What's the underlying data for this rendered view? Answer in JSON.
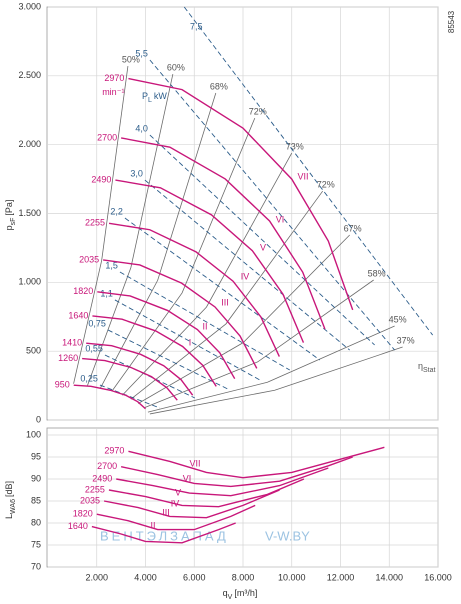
{
  "figure_id": "85543",
  "watermark": {
    "brand": "ВЕНТЭЛЗАПАД",
    "site": "V-W.BY"
  },
  "chart_data": [
    {
      "type": "line",
      "ylabel": {
        "symbol": "p",
        "sub": "sF",
        "unit": "[Pa]"
      },
      "xlim": [
        0,
        16000
      ],
      "ylim": [
        0,
        3000
      ],
      "yticks": [
        0,
        500,
        {
          "value": 1000,
          "label": "1.000"
        },
        {
          "value": 1500,
          "label": "1.500"
        },
        {
          "value": 2000,
          "label": "2.000"
        },
        {
          "value": 2500,
          "label": "2.500"
        },
        {
          "value": 3000,
          "label": "3.000"
        }
      ],
      "grid": true,
      "speed_unit": "min⁻¹",
      "series": [
        {
          "name": "2970",
          "color": "#c8177a",
          "x": [
            3300,
            5500,
            8000,
            10000,
            11500,
            12500
          ],
          "values": [
            2480,
            2400,
            2120,
            1750,
            1300,
            800
          ]
        },
        {
          "name": "2700",
          "color": "#c8177a",
          "x": [
            3000,
            5000,
            7270,
            9090,
            10450,
            11360
          ],
          "values": [
            2049,
            1982,
            1751,
            1446,
            1074,
            661
          ]
        },
        {
          "name": "2490",
          "color": "#c8177a",
          "x": [
            2766,
            4611,
            6707,
            8384,
            9641,
            10480
          ],
          "values": [
            1743,
            1687,
            1490,
            1230,
            914,
            562
          ]
        },
        {
          "name": "2255",
          "color": "#c8177a",
          "x": [
            2505,
            4176,
            6074,
            7593,
            8732,
            9491
          ],
          "values": [
            1429,
            1382,
            1221,
            1008,
            749,
            461
          ]
        },
        {
          "name": "2035",
          "color": "#c8177a",
          "x": [
            2261,
            3768,
            5481,
            6852,
            7880,
            8565
          ],
          "values": [
            1163,
            1126,
            994,
            821,
            610,
            375
          ]
        },
        {
          "name": "1820",
          "color": "#c8177a",
          "x": [
            2022,
            3370,
            4902,
            6128,
            7047,
            7660
          ],
          "values": [
            931,
            901,
            796,
            657,
            488,
            300
          ]
        },
        {
          "name": "1640",
          "color": "#c8177a",
          "x": [
            1822,
            3037,
            4418,
            5522,
            6350,
            6902
          ],
          "values": [
            756,
            732,
            647,
            534,
            397,
            244
          ]
        },
        {
          "name": "1410",
          "color": "#c8177a",
          "x": [
            1567,
            2611,
            3798,
            4747,
            5459,
            5934
          ],
          "values": [
            558,
            540,
            477,
            394,
            293,
            180
          ]
        },
        {
          "name": "1260",
          "color": "#c8177a",
          "x": [
            1400,
            2333,
            3394,
            4242,
            4879,
            5303
          ],
          "values": [
            446,
            432,
            382,
            315,
            234,
            144
          ]
        },
        {
          "name": "950",
          "color": "#c8177a",
          "x": [
            1056,
            1759,
            2559,
            3199,
            3679,
            3999
          ],
          "values": [
            253,
            245,
            216,
            179,
            133,
            82
          ]
        }
      ],
      "curve_labels": [
        "I",
        "II",
        "III",
        "IV",
        "V",
        "VI",
        "VII"
      ],
      "efficiency_label": {
        "symbol": "η",
        "sub": "Stat"
      },
      "efficiency_lines": [
        {
          "name": "50%",
          "color": "#6b6b6b",
          "x": [
            1050,
            2200,
            3279
          ],
          "values": [
            264,
            1157,
            2571
          ]
        },
        {
          "name": "60%",
          "color": "#6b6b6b",
          "x": [
            1620,
            3400,
            5123
          ],
          "values": [
            251,
            1107,
            2513
          ]
        },
        {
          "name": "68%",
          "color": "#6b6b6b",
          "x": [
            2150,
            4500,
            6885
          ],
          "values": [
            232,
            1015,
            2375
          ]
        },
        {
          "name": "72%",
          "color": "#6b6b6b",
          "x": [
            2620,
            5500,
            8484
          ],
          "values": [
            209,
            923,
            2193
          ]
        },
        {
          "name": "73%",
          "color": "#6b6b6b",
          "x": [
            3050,
            6500,
            10000
          ],
          "values": [
            180,
            820,
            1939
          ]
        },
        {
          "name": "72%",
          "color": "#6b6b6b",
          "x": [
            3400,
            7300,
            11270
          ],
          "values": [
            151,
            698,
            1663
          ]
        },
        {
          "name": "67%",
          "color": "#6b6b6b",
          "x": [
            3700,
            8000,
            12377
          ],
          "values": [
            120,
            561,
            1344
          ]
        },
        {
          "name": "58%",
          "color": "#6b6b6b",
          "x": [
            3950,
            8600,
            13361
          ],
          "values": [
            89,
            422,
            1017
          ]
        },
        {
          "name": "45%",
          "color": "#6b6b6b",
          "x": [
            4100,
            9000,
            14221
          ],
          "values": [
            57,
            274,
            683
          ]
        },
        {
          "name": "37%",
          "color": "#6b6b6b",
          "x": [
            4180,
            9300,
            14549
          ],
          "values": [
            44,
            216,
            530
          ]
        }
      ],
      "power_label": {
        "symbol": "P",
        "sub": "L",
        "unit": "kW"
      },
      "power_lines": [
        {
          "name": "0,25",
          "color": "#2b5c8a",
          "x": [
            2131,
            4590
          ],
          "values": [
            254,
            87
          ]
        },
        {
          "name": "0,55",
          "color": "#2b5c8a",
          "x": [
            2336,
            6025
          ],
          "values": [
            472,
            160
          ]
        },
        {
          "name": "0,75",
          "color": "#2b5c8a",
          "x": [
            2459,
            7459
          ],
          "values": [
            654,
            218
          ]
        },
        {
          "name": "1,1",
          "color": "#2b5c8a",
          "x": [
            2746,
            8689
          ],
          "values": [
            872,
            291
          ]
        },
        {
          "name": "1,5",
          "color": "#2b5c8a",
          "x": [
            2951,
            9918
          ],
          "values": [
            1075,
            363
          ]
        },
        {
          "name": "2,2",
          "color": "#2b5c8a",
          "x": [
            3156,
            11148
          ],
          "values": [
            1467,
            436
          ]
        },
        {
          "name": "3,0",
          "color": "#2b5c8a",
          "x": [
            3975,
            12377
          ],
          "values": [
            1743,
            508
          ]
        },
        {
          "name": "4,0",
          "color": "#2b5c8a",
          "x": [
            4180,
            13400
          ],
          "values": [
            2070,
            545
          ]
        },
        {
          "name": "5,5",
          "color": "#2b5c8a",
          "x": [
            4180,
            14221
          ],
          "values": [
            2615,
            508
          ]
        },
        {
          "name": "7,5",
          "color": "#2b5c8a",
          "x": [
            5590,
            15780
          ],
          "values": [
            3000,
            617
          ]
        }
      ]
    },
    {
      "type": "line",
      "ylabel": {
        "symbol": "L",
        "sub": "WA6",
        "unit": "[dB]"
      },
      "xlabel": {
        "symbol": "q",
        "sub": "V",
        "unit": "[m³/h]"
      },
      "xlim": [
        0,
        16000
      ],
      "ylim": [
        70,
        100
      ],
      "xticks": [
        {
          "value": 2000,
          "label": "2.000"
        },
        {
          "value": 4000,
          "label": "4.000"
        },
        {
          "value": 6000,
          "label": "6.000"
        },
        {
          "value": 8000,
          "label": "8.000"
        },
        {
          "value": 10000,
          "label": "10.000"
        },
        {
          "value": 12000,
          "label": "12.000"
        },
        {
          "value": 14000,
          "label": "14.000"
        },
        {
          "value": 16000,
          "label": "16.000"
        }
      ],
      "yticks": [
        70,
        75,
        80,
        85,
        90,
        95,
        100
      ],
      "grid": true,
      "series": [
        {
          "name": "2970",
          "color": "#c8177a",
          "x": [
            3300,
            5000,
            6500,
            8000,
            10000,
            12000,
            13800
          ],
          "values": [
            96.3,
            94,
            91.5,
            90.3,
            91.5,
            94.5,
            97.2
          ]
        },
        {
          "name": "2700",
          "color": "#c8177a",
          "x": [
            3000,
            4500,
            6000,
            7500,
            9500,
            11500,
            12500
          ],
          "values": [
            92.8,
            91,
            89,
            88.3,
            89.5,
            93,
            95
          ]
        },
        {
          "name": "2490",
          "color": "#c8177a",
          "x": [
            2800,
            4300,
            5800,
            7500,
            9500,
            11500
          ],
          "values": [
            90,
            88.5,
            86.8,
            86.2,
            88.5,
            92.5
          ]
        },
        {
          "name": "2255",
          "color": "#c8177a",
          "x": [
            2500,
            4000,
            5500,
            7000,
            9000,
            10500
          ],
          "values": [
            87.5,
            86,
            84,
            83.7,
            86.5,
            90
          ]
        },
        {
          "name": "2035",
          "color": "#c8177a",
          "x": [
            2300,
            3700,
            5000,
            6500,
            8000,
            9500
          ],
          "values": [
            85,
            83.5,
            81.5,
            81.2,
            84,
            87.5
          ]
        },
        {
          "name": "1820",
          "color": "#c8177a",
          "x": [
            2000,
            3300,
            4500,
            6000,
            7500,
            8500
          ],
          "values": [
            82,
            80.5,
            78.5,
            78.5,
            81.5,
            84
          ]
        },
        {
          "name": "1640",
          "color": "#c8177a",
          "x": [
            1800,
            3000,
            4000,
            5500,
            7000,
            7700
          ],
          "values": [
            79.2,
            77.5,
            75.8,
            75.5,
            78.5,
            80
          ]
        }
      ],
      "curve_labels": [
        "II",
        "III",
        "IV",
        "V",
        "VI",
        "VII"
      ]
    }
  ]
}
